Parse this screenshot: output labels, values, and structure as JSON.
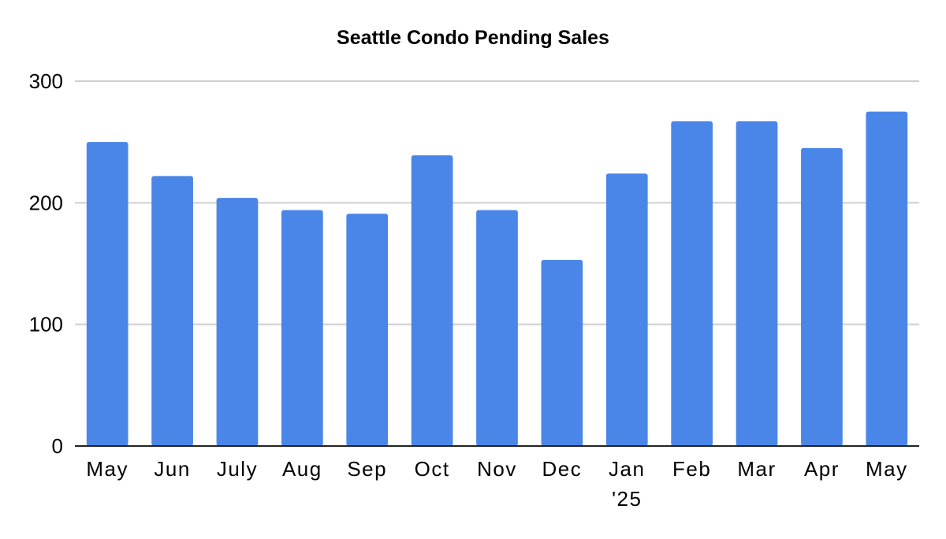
{
  "chart_data": {
    "type": "bar",
    "title": "Seattle Condo Pending Sales",
    "categories": [
      "May",
      "Jun",
      "July",
      "Aug",
      "Sep",
      "Oct",
      "Nov",
      "Dec",
      "Jan\n'25",
      "Feb",
      "Mar",
      "Apr",
      "May"
    ],
    "series": [
      {
        "values": [
          250,
          222,
          204,
          194,
          191,
          239,
          194,
          153,
          224,
          267,
          267,
          245,
          275
        ]
      }
    ],
    "ylim": [
      0,
      300
    ],
    "yticks": [
      0,
      100,
      200,
      300
    ],
    "grid": true,
    "legend": "none",
    "xlabel": "",
    "ylabel": "",
    "colors": {
      "bar": "#4a86e8",
      "grid": "#cfcfcf",
      "axis": "#222222"
    }
  }
}
